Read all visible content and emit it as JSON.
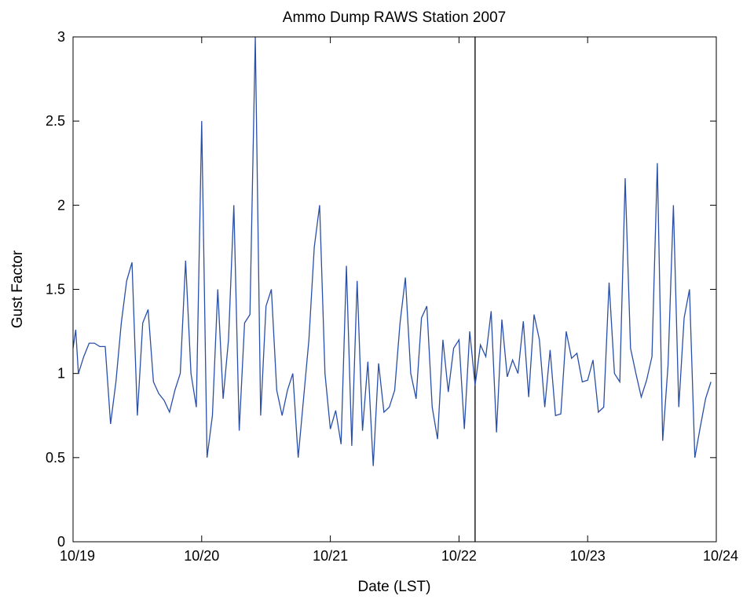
{
  "chart_data": {
    "type": "line",
    "title": "Ammo Dump RAWS Station 2007",
    "xlabel": "Date (LST)",
    "ylabel": "Gust Factor",
    "x_range": [
      "10/19",
      "10/24"
    ],
    "ylim": [
      0,
      3
    ],
    "x_ticks": [
      "10/19",
      "10/20",
      "10/21",
      "10/22",
      "10/23",
      "10/24"
    ],
    "y_ticks": [
      "0",
      "0.5",
      "1",
      "1.5",
      "2",
      "2.5",
      "3"
    ],
    "grid": false,
    "line_color": "#2a4fa8",
    "vertical_line": {
      "x": "10/22 03:00",
      "color": "#000000"
    },
    "series": [
      {
        "points": [
          [
            "10/19 00:00",
            1.15
          ],
          [
            "10/19 00:30",
            1.26
          ],
          [
            "10/19 01:00",
            1.0
          ],
          [
            "10/19 02:00",
            1.1
          ],
          [
            "10/19 03:00",
            1.18
          ],
          [
            "10/19 04:00",
            1.18
          ],
          [
            "10/19 05:00",
            1.16
          ],
          [
            "10/19 06:00",
            1.16
          ],
          [
            "10/19 07:00",
            0.7
          ],
          [
            "10/19 08:00",
            0.95
          ],
          [
            "10/19 09:00",
            1.3
          ],
          [
            "10/19 10:00",
            1.55
          ],
          [
            "10/19 11:00",
            1.66
          ],
          [
            "10/19 12:00",
            0.75
          ],
          [
            "10/19 13:00",
            1.3
          ],
          [
            "10/19 14:00",
            1.38
          ],
          [
            "10/19 15:00",
            0.95
          ],
          [
            "10/19 16:00",
            0.88
          ],
          [
            "10/19 17:00",
            0.84
          ],
          [
            "10/19 18:00",
            0.77
          ],
          [
            "10/19 19:00",
            0.9
          ],
          [
            "10/19 20:00",
            1.0
          ],
          [
            "10/19 21:00",
            1.67
          ],
          [
            "10/19 22:00",
            1.0
          ],
          [
            "10/19 23:00",
            0.8
          ],
          [
            "10/20 00:00",
            2.5
          ],
          [
            "10/20 01:00",
            0.5
          ],
          [
            "10/20 02:00",
            0.75
          ],
          [
            "10/20 03:00",
            1.5
          ],
          [
            "10/20 04:00",
            0.85
          ],
          [
            "10/20 05:00",
            1.2
          ],
          [
            "10/20 06:00",
            2.0
          ],
          [
            "10/20 07:00",
            0.66
          ],
          [
            "10/20 08:00",
            1.3
          ],
          [
            "10/20 09:00",
            1.35
          ],
          [
            "10/20 10:00",
            3.0
          ],
          [
            "10/20 11:00",
            0.75
          ],
          [
            "10/20 12:00",
            1.4
          ],
          [
            "10/20 13:00",
            1.5
          ],
          [
            "10/20 14:00",
            0.9
          ],
          [
            "10/20 15:00",
            0.75
          ],
          [
            "10/20 16:00",
            0.9
          ],
          [
            "10/20 17:00",
            1.0
          ],
          [
            "10/20 18:00",
            0.5
          ],
          [
            "10/20 19:00",
            0.85
          ],
          [
            "10/20 20:00",
            1.2
          ],
          [
            "10/20 21:00",
            1.75
          ],
          [
            "10/20 22:00",
            2.0
          ],
          [
            "10/20 23:00",
            1.0
          ],
          [
            "10/21 00:00",
            0.67
          ],
          [
            "10/21 01:00",
            0.78
          ],
          [
            "10/21 02:00",
            0.58
          ],
          [
            "10/21 03:00",
            1.64
          ],
          [
            "10/21 04:00",
            0.57
          ],
          [
            "10/21 05:00",
            1.55
          ],
          [
            "10/21 06:00",
            0.66
          ],
          [
            "10/21 07:00",
            1.07
          ],
          [
            "10/21 08:00",
            0.45
          ],
          [
            "10/21 09:00",
            1.06
          ],
          [
            "10/21 10:00",
            0.77
          ],
          [
            "10/21 11:00",
            0.8
          ],
          [
            "10/21 12:00",
            0.9
          ],
          [
            "10/21 13:00",
            1.3
          ],
          [
            "10/21 14:00",
            1.57
          ],
          [
            "10/21 15:00",
            1.0
          ],
          [
            "10/21 16:00",
            0.85
          ],
          [
            "10/21 17:00",
            1.33
          ],
          [
            "10/21 18:00",
            1.4
          ],
          [
            "10/21 19:00",
            0.8
          ],
          [
            "10/21 20:00",
            0.61
          ],
          [
            "10/21 21:00",
            1.2
          ],
          [
            "10/21 22:00",
            0.89
          ],
          [
            "10/21 23:00",
            1.15
          ],
          [
            "10/22 00:00",
            1.2
          ],
          [
            "10/22 01:00",
            0.67
          ],
          [
            "10/22 02:00",
            1.25
          ],
          [
            "10/22 03:00",
            0.93
          ],
          [
            "10/22 04:00",
            1.17
          ],
          [
            "10/22 05:00",
            1.1
          ],
          [
            "10/22 06:00",
            1.37
          ],
          [
            "10/22 07:00",
            0.65
          ],
          [
            "10/22 08:00",
            1.32
          ],
          [
            "10/22 09:00",
            0.98
          ],
          [
            "10/22 10:00",
            1.08
          ],
          [
            "10/22 11:00",
            1.0
          ],
          [
            "10/22 12:00",
            1.31
          ],
          [
            "10/22 13:00",
            0.86
          ],
          [
            "10/22 14:00",
            1.35
          ],
          [
            "10/22 15:00",
            1.2
          ],
          [
            "10/22 16:00",
            0.8
          ],
          [
            "10/22 17:00",
            1.14
          ],
          [
            "10/22 18:00",
            0.75
          ],
          [
            "10/22 19:00",
            0.76
          ],
          [
            "10/22 20:00",
            1.25
          ],
          [
            "10/22 21:00",
            1.09
          ],
          [
            "10/22 22:00",
            1.12
          ],
          [
            "10/22 23:00",
            0.95
          ],
          [
            "10/23 00:00",
            0.96
          ],
          [
            "10/23 01:00",
            1.08
          ],
          [
            "10/23 02:00",
            0.77
          ],
          [
            "10/23 03:00",
            0.8
          ],
          [
            "10/23 04:00",
            1.54
          ],
          [
            "10/23 05:00",
            1.0
          ],
          [
            "10/23 06:00",
            0.95
          ],
          [
            "10/23 07:00",
            2.16
          ],
          [
            "10/23 08:00",
            1.15
          ],
          [
            "10/23 09:00",
            1.0
          ],
          [
            "10/23 10:00",
            0.86
          ],
          [
            "10/23 11:00",
            0.96
          ],
          [
            "10/23 12:00",
            1.1
          ],
          [
            "10/23 13:00",
            2.25
          ],
          [
            "10/23 14:00",
            0.6
          ],
          [
            "10/23 15:00",
            1.05
          ],
          [
            "10/23 16:00",
            2.0
          ],
          [
            "10/23 17:00",
            0.8
          ],
          [
            "10/23 18:00",
            1.33
          ],
          [
            "10/23 19:00",
            1.5
          ],
          [
            "10/23 20:00",
            0.5
          ],
          [
            "10/23 21:00",
            0.68
          ],
          [
            "10/23 22:00",
            0.85
          ],
          [
            "10/23 23:00",
            0.95
          ]
        ]
      }
    ]
  }
}
